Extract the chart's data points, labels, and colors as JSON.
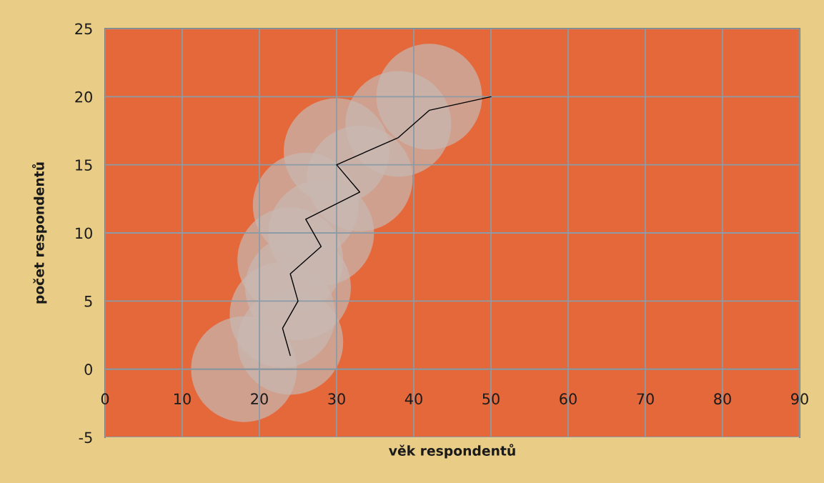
{
  "chart_data": {
    "type": "bubble",
    "xlabel": "věk respondentů",
    "ylabel": "počet respondentů",
    "xlim": [
      0,
      90
    ],
    "xticks": [
      0,
      10,
      20,
      30,
      40,
      50,
      60,
      70,
      80,
      90
    ],
    "ylim": [
      -5,
      25
    ],
    "yticks": [
      -5,
      0,
      5,
      10,
      15,
      20,
      25
    ],
    "grid": true,
    "series": [
      {
        "color": "#c8b8b2",
        "x": [
          18,
          24,
          23,
          25,
          24,
          28,
          26,
          33,
          30,
          38,
          42
        ],
        "values": [
          0,
          2,
          4,
          6,
          8,
          10,
          12,
          14,
          16,
          18,
          20
        ],
        "sizes": [
          1,
          1,
          1,
          1,
          1,
          1,
          1,
          1,
          1,
          1,
          1
        ]
      },
      {
        "type": "line",
        "color": "#000000",
        "x": [
          24,
          23,
          25,
          24,
          28,
          26,
          33,
          30,
          38,
          42,
          50
        ],
        "values": [
          1,
          3,
          5,
          7,
          9,
          11,
          13,
          15,
          17,
          19,
          20
        ]
      }
    ]
  }
}
